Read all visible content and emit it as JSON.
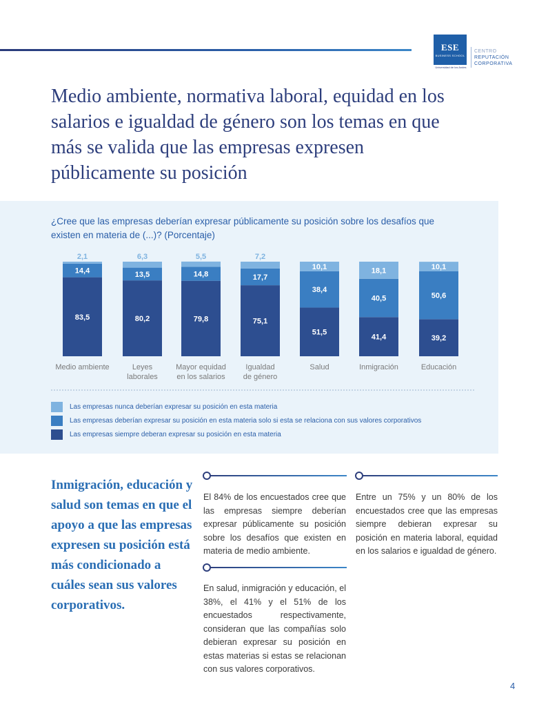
{
  "logo": {
    "brand": "ESE",
    "subtitle": "BUSINESS SCHOOL",
    "university": "Universidad de los Andes",
    "center_line1": "CENTRO",
    "center_line2": "REPUTACIÓN",
    "center_line3": "CORPORATIVA"
  },
  "title": "Medio ambiente, normativa laboral, equidad en los salarios e igualdad de género son los temas en que más se valida que las empresas expresen públicamente su posición",
  "chart": {
    "question": "¿Cree que las empresas deberían expresar públicamente su posición sobre los desafíos que existen en materia de (...)? (Porcentaje)"
  },
  "chart_data": {
    "type": "bar",
    "stacked": true,
    "categories": [
      [
        "Medio ambiente"
      ],
      [
        "Leyes",
        "laborales"
      ],
      [
        "Mayor equidad",
        "en los salarios"
      ],
      [
        "Igualdad",
        "de género"
      ],
      [
        "Salud"
      ],
      [
        "Inmigración"
      ],
      [
        "Educación"
      ]
    ],
    "series": [
      {
        "name": "Las empresas siempre deberan expresar su posición en esta materia",
        "color": "#2d4e90",
        "values": [
          83.5,
          80.2,
          79.8,
          75.1,
          51.5,
          41.4,
          39.2
        ],
        "labels": [
          "83,5",
          "80,2",
          "79,8",
          "75,1",
          "51,5",
          "41,4",
          "39,2"
        ]
      },
      {
        "name": "Las empresas deberían expresar su posición en esta materia solo si esta se relaciona con sus valores corporativos",
        "color": "#3a7ec2",
        "values": [
          14.4,
          13.5,
          14.8,
          17.7,
          38.4,
          40.5,
          50.6
        ],
        "labels": [
          "14,4",
          "13,5",
          "14,8",
          "17,7",
          "38,4",
          "40,5",
          "50,6"
        ]
      },
      {
        "name": "Las empresas nunca deberían expresar su posición en esta materia",
        "color": "#7fb3e0",
        "values": [
          2.1,
          6.3,
          5.5,
          7.2,
          10.1,
          18.1,
          10.1
        ],
        "labels": [
          "2,1",
          "6,3",
          "5,5",
          "7,2",
          "10,1",
          "18,1",
          "10,1"
        ]
      }
    ],
    "legend_order": [
      2,
      1,
      0
    ],
    "ylim": [
      0,
      100
    ],
    "legend_position": "bottom"
  },
  "side_quote": "Inmigración, educación y salud son temas en que el apoyo a que las empresas expresen su posición está más condicionado a cuáles sean sus valores corporativos.",
  "text_blocks": {
    "col1_top": "El 84% de los encuestados cree que las empresas siempre deberían expresar públicamente su posición sobre los desafíos que existen en materia de medio ambiente.",
    "col1_bottom": "En salud, inmigración y educación, el 38%, el 41% y el 51% de los encuestados respectivamente, consideran que las compañías solo debieran expresar su posición en estas materias si estas se relacionan con sus valores corporativos.",
    "col2_top": "Entre un 75% y un 80% de los encuestados cree que las empresas siempre debieran expresar su posición en materia laboral, equidad en los salarios e igualdad de género."
  },
  "page_number": "4"
}
